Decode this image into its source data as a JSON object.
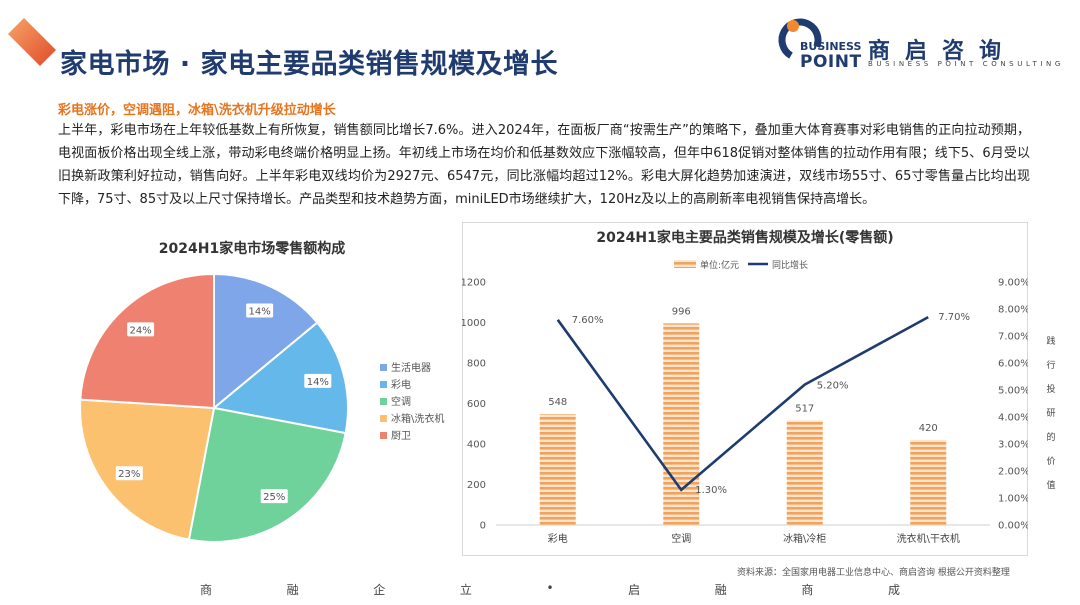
{
  "header": {
    "title": "家电市场 · 家电主要品类销售规模及增长",
    "logo": {
      "en_line1": "BUSINESS",
      "en_line2": "POINT",
      "cn": "商启咨询",
      "sub": "BUSINESS POINT CONSULTING"
    }
  },
  "summary": {
    "headline": "彩电涨价，空调遇阻，冰箱\\洗衣机升级拉动增长",
    "body": "上半年，彩电市场在上年较低基数上有所恢复，销售额同比增长7.6%。进入2024年，在面板厂商“按需生产”的策略下，叠加重大体育赛事对彩电销售的正向拉动预期，电视面板价格出现全线上涨，带动彩电终端价格明显上扬。年初线上市场在均价和低基数效应下涨幅较高，但年中618促销对整体销售的拉动作用有限；线下5、6月受以旧换新政策利好拉动，销售向好。上半年彩电双线均价为2927元、6547元，同比涨幅均超过12%。彩电大屏化趋势加速演进，双线市场55寸、65寸零售量占比均出现下降，75寸、85寸及以上尺寸保持增长。产品类型和技术趋势方面，miniLED市场继续扩大，120Hz及以上的高刷新率电视销售保持高增长。"
  },
  "colors": {
    "title": "#1f3b6f",
    "accent": "#e8741e",
    "bar": "#f0a35e",
    "line": "#1f3b6f"
  },
  "chart_data": [
    {
      "type": "pie",
      "title": "2024H1家电市场零售额构成",
      "legend_position": "right",
      "slices": [
        {
          "label": "生活电器",
          "value": 14,
          "display": "14%",
          "color": "#7ea6e8"
        },
        {
          "label": "彩电",
          "value": 14,
          "display": "14%",
          "color": "#64b9ea"
        },
        {
          "label": "空调",
          "value": 25,
          "display": "25%",
          "color": "#6fd29a"
        },
        {
          "label": "冰箱\\洗衣机",
          "value": 23,
          "display": "23%",
          "color": "#fbc16f"
        },
        {
          "label": "厨卫",
          "value": 24,
          "display": "24%",
          "color": "#ef8170"
        }
      ]
    },
    {
      "type": "bar+line",
      "title": "2024H1家电主要品类销售规模及增长(零售额)",
      "legend_position": "top",
      "categories": [
        "彩电",
        "空调",
        "冰箱\\冷柜",
        "洗衣机\\干衣机"
      ],
      "series": [
        {
          "name": "单位:亿元",
          "type": "bar",
          "axis": "left",
          "values": [
            548,
            996,
            517,
            420
          ],
          "labels": [
            "548",
            "996",
            "517",
            "420"
          ]
        },
        {
          "name": "同比增长",
          "type": "line",
          "axis": "right",
          "values": [
            7.6,
            1.3,
            5.2,
            7.7
          ],
          "labels": [
            "7.60%",
            "1.30%",
            "5.20%",
            "7.70%"
          ]
        }
      ],
      "y_left": {
        "min": 0,
        "max": 1200,
        "ticks": [
          "0",
          "200",
          "400",
          "600",
          "800",
          "1000",
          "1200"
        ]
      },
      "y_right": {
        "min": 0,
        "max": 9,
        "ticks": [
          "0.00%",
          "1.00%",
          "2.00%",
          "3.00%",
          "4.00%",
          "5.00%",
          "6.00%",
          "7.00%",
          "8.00%",
          "9.00%"
        ]
      }
    }
  ],
  "side_note": [
    "践",
    "行",
    "投",
    "研",
    "的",
    "价",
    "值"
  ],
  "source": "资料来源：全国家用电器工业信息中心、商启咨询 根据公开资料整理",
  "footer": [
    "商",
    "融",
    "企",
    "立",
    "•",
    "启",
    "融",
    "商",
    "成"
  ]
}
